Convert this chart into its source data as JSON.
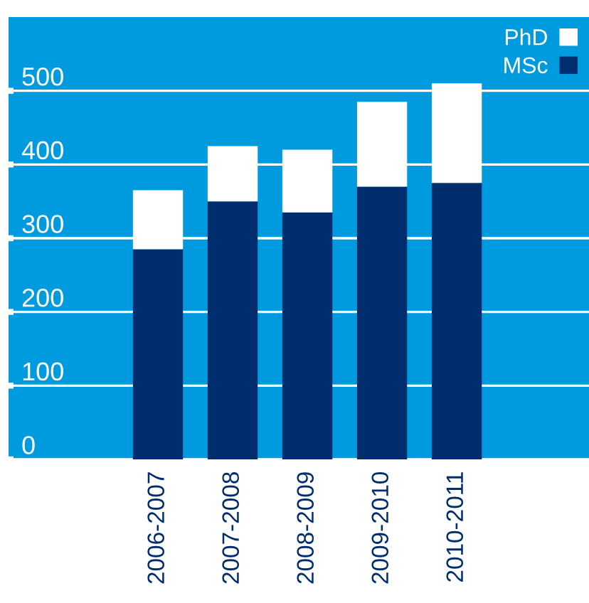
{
  "chart_data": {
    "type": "bar",
    "stacked": true,
    "categories": [
      "2006-2007",
      "2007-2008",
      "2008-2009",
      "2009-2010",
      "2010-2011"
    ],
    "series": [
      {
        "name": "MSc",
        "color": "#002d6e",
        "values": [
          285,
          350,
          335,
          370,
          375
        ]
      },
      {
        "name": "PhD",
        "color": "#ffffff",
        "values": [
          80,
          75,
          85,
          115,
          135
        ]
      }
    ],
    "ylim": [
      0,
      600
    ],
    "yticks": [
      0,
      100,
      200,
      300,
      400,
      500
    ],
    "grid": "y",
    "legend": "top right"
  }
}
